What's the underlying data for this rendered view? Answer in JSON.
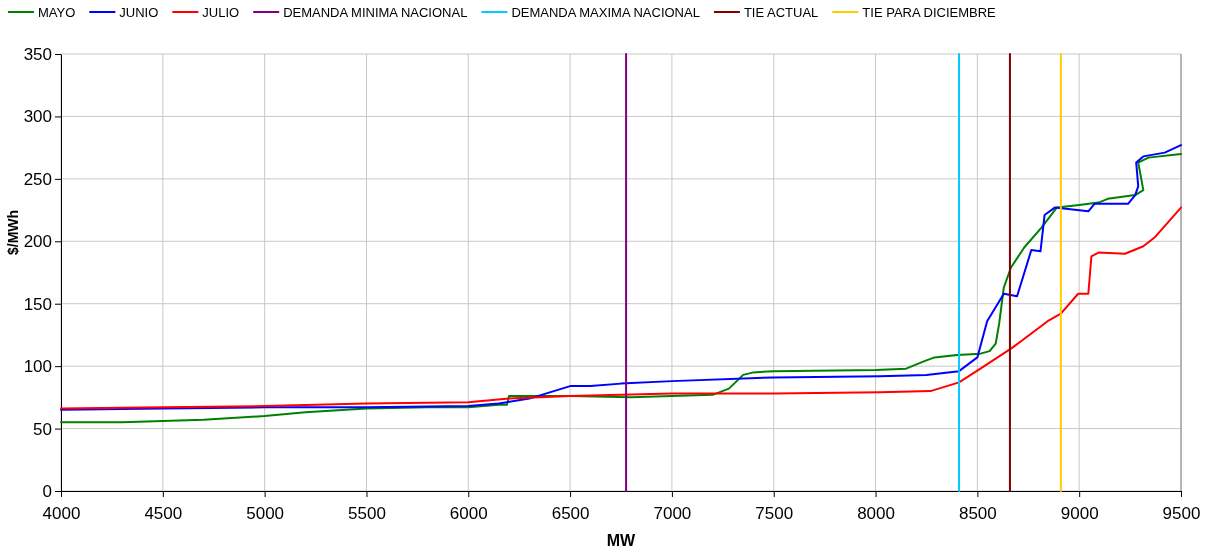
{
  "chart_data": {
    "type": "line",
    "xlabel": "MW",
    "ylabel": "$/MWh",
    "xlim": [
      4000,
      9500
    ],
    "ylim": [
      0,
      350
    ],
    "xticks": [
      4000,
      4500,
      5000,
      5500,
      6000,
      6500,
      7000,
      7500,
      8000,
      8500,
      9000,
      9500
    ],
    "yticks": [
      0,
      50,
      100,
      150,
      200,
      250,
      300,
      350
    ],
    "grid": true,
    "legend": "top",
    "line_style": "solid",
    "marker": "none",
    "series": [
      {
        "name": "MAYO",
        "color": "#008000",
        "x": [
          4000,
          4300,
          4500,
          4700,
          5000,
          5200,
          5500,
          5800,
          6000,
          6150,
          6190,
          6200,
          6500,
          6800,
          7000,
          7200,
          7280,
          7350,
          7400,
          7500,
          8000,
          8150,
          8240,
          8290,
          8400,
          8515,
          8560,
          8590,
          8607,
          8630,
          8665,
          8730,
          8815,
          8890,
          9000,
          9095,
          9140,
          9275,
          9315,
          9290,
          9340,
          9500
        ],
        "values": [
          55,
          55,
          56,
          57,
          60,
          63,
          66,
          67,
          67,
          69,
          69,
          76,
          76,
          75,
          76,
          77,
          82,
          93,
          95,
          96,
          97,
          98,
          104,
          107,
          109,
          110,
          112,
          118,
          134,
          163,
          179,
          195,
          211,
          227,
          229,
          231,
          234,
          237,
          241,
          263,
          267,
          270
        ]
      },
      {
        "name": "JUNIO",
        "color": "#0000ff",
        "x": [
          4000,
          4500,
          5000,
          5500,
          6000,
          6150,
          6300,
          6400,
          6500,
          6600,
          6750,
          7000,
          7500,
          8023,
          8250,
          8410,
          8500,
          8548,
          8630,
          8695,
          8765,
          8810,
          8830,
          8880,
          9045,
          9075,
          9240,
          9275,
          9290,
          9280,
          9315,
          9420,
          9500
        ],
        "values": [
          65,
          66,
          67,
          67,
          68,
          70,
          74,
          79,
          84,
          84,
          86,
          88,
          91,
          92,
          93,
          96,
          107,
          136,
          158,
          156,
          193,
          192,
          221,
          227,
          224,
          230,
          230,
          237,
          244,
          263,
          268,
          271,
          277
        ]
      },
      {
        "name": "JULIO",
        "color": "#ff0000",
        "x": [
          4000,
          4500,
          5000,
          5500,
          6000,
          6200,
          6500,
          6750,
          7000,
          7500,
          8023,
          8270,
          8410,
          8515,
          8665,
          8845,
          8910,
          8995,
          9045,
          9060,
          9095,
          9225,
          9315,
          9370,
          9500
        ],
        "values": [
          66,
          67,
          68,
          70,
          71,
          74,
          76,
          77,
          78,
          78,
          79,
          80,
          87,
          98,
          114,
          136,
          142,
          158,
          158,
          188,
          191,
          190,
          196,
          203,
          227
        ]
      },
      {
        "name": "DEMANDA MINIMA NACIONAL",
        "color": "#800080",
        "x": [
          6775,
          6775
        ],
        "values": [
          0,
          350
        ]
      },
      {
        "name": "DEMANDA MAXIMA NACIONAL",
        "color": "#00ccff",
        "x": [
          8410,
          8410
        ],
        "values": [
          0,
          350
        ]
      },
      {
        "name": "TIE ACTUAL",
        "color": "#800000",
        "x": [
          8660,
          8660
        ],
        "values": [
          0,
          350
        ]
      },
      {
        "name": "TIE PARA DICIEMBRE",
        "color": "#ffcc00",
        "x": [
          8910,
          8910
        ],
        "values": [
          0,
          350
        ]
      }
    ]
  }
}
